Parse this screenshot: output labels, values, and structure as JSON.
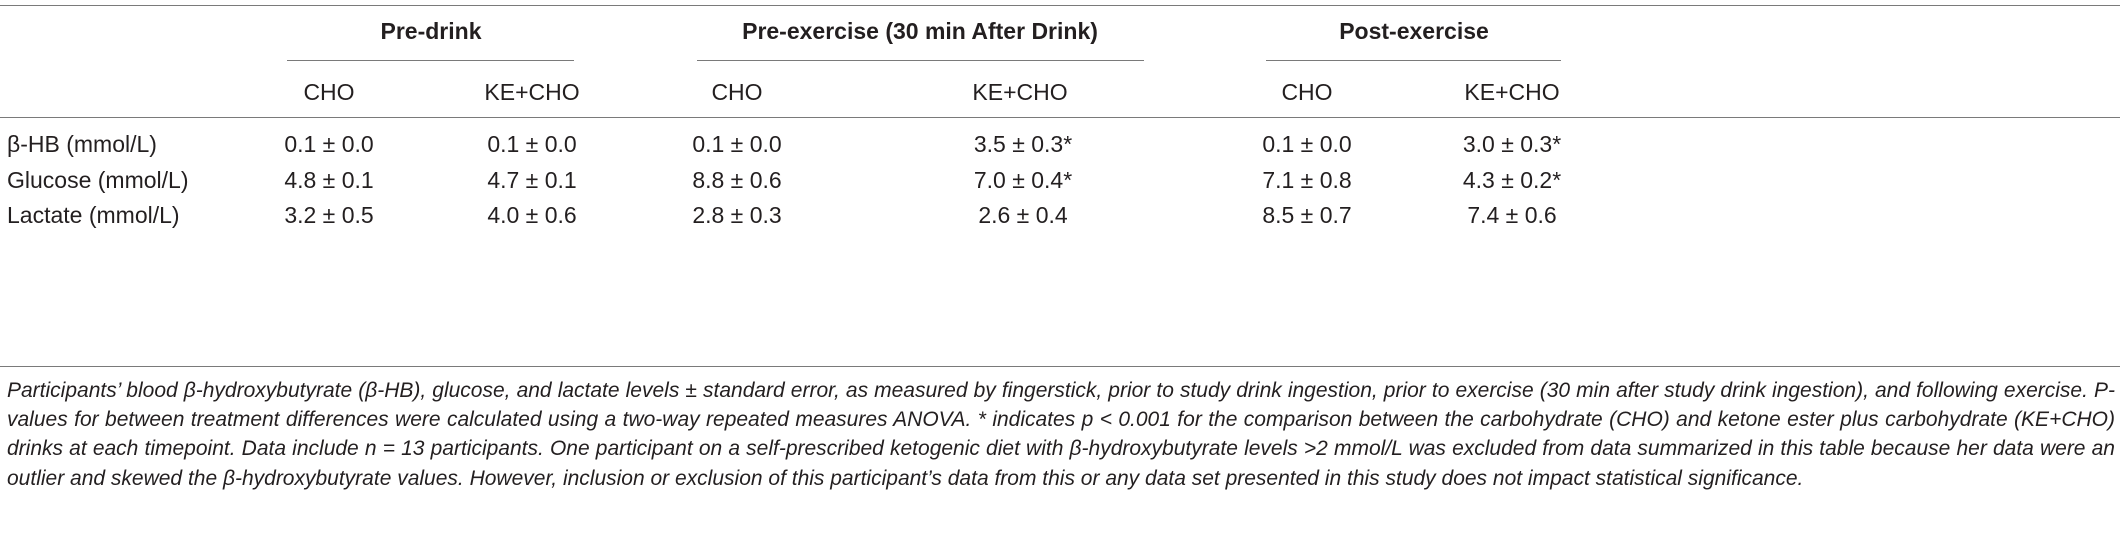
{
  "table": {
    "groups": [
      {
        "label": "Pre-drink"
      },
      {
        "label": "Pre-exercise (30 min After Drink)"
      },
      {
        "label": "Post-exercise"
      }
    ],
    "subheaders": [
      "CHO",
      "KE+CHO",
      "CHO",
      "KE+CHO",
      "CHO",
      "KE+CHO"
    ],
    "rows": [
      {
        "label": "β-HB (mmol/L)",
        "values": [
          "0.1 ± 0.0",
          "0.1 ± 0.0",
          "0.1 ± 0.0",
          "3.5 ± 0.3*",
          "0.1 ± 0.0",
          "3.0 ± 0.3*"
        ]
      },
      {
        "label": "Glucose (mmol/L)",
        "values": [
          "4.8 ± 0.1",
          "4.7 ± 0.1",
          "8.8 ± 0.6",
          "7.0 ± 0.4*",
          "7.1 ± 0.8",
          "4.3 ± 0.2*"
        ]
      },
      {
        "label": "Lactate (mmol/L)",
        "values": [
          "3.2 ± 0.5",
          "4.0 ± 0.6",
          "2.8 ± 0.3",
          "2.6 ± 0.4",
          "8.5 ± 0.7",
          "7.4 ± 0.6"
        ]
      }
    ]
  },
  "caption": "Participants’ blood β-hydroxybutyrate (β-HB), glucose, and lactate levels ± standard error, as measured by fingerstick, prior to study drink ingestion, prior to exercise (30 min after study drink ingestion), and following exercise. P-values for between treatment differences were calculated using a two-way repeated measures ANOVA. * indicates p < 0.001 for the comparison between the carbohydrate (CHO) and ketone ester plus carbohydrate (KE+CHO) drinks at each timepoint. Data include n = 13 participants. One participant on a self-prescribed ketogenic diet with β-hydroxybutyrate levels >2 mmol/L was excluded from data summarized in this table because her data were an outlier and skewed the β-hydroxybutyrate values. However, inclusion or exclusion of this participant’s data from this or any data set presented in this study does not impact statistical significance."
}
